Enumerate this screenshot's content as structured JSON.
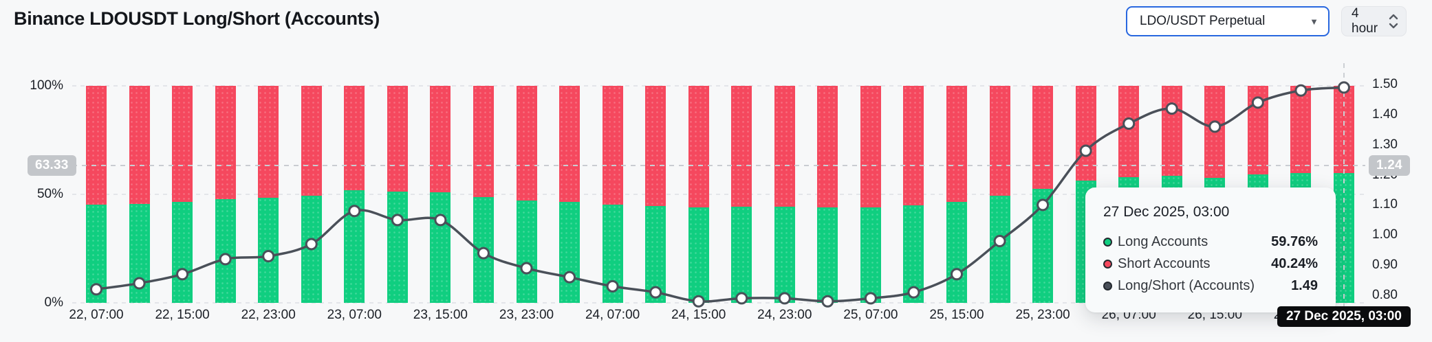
{
  "header": {
    "title": "Binance LDOUSDT Long/Short (Accounts)"
  },
  "controls": {
    "pair_select": {
      "value": "LDO/USDT Perpetual",
      "accent_color": "#2867df"
    },
    "interval_select": {
      "value": "4 hour"
    }
  },
  "chart_data": {
    "type": "bar",
    "subtype": "stacked-percent-bars-with-ratio-line",
    "categories": [
      "22, 07:00",
      "22, 11:00",
      "22, 15:00",
      "22, 19:00",
      "22, 23:00",
      "23, 03:00",
      "23, 07:00",
      "23, 11:00",
      "23, 15:00",
      "23, 19:00",
      "23, 23:00",
      "24, 03:00",
      "24, 07:00",
      "24, 11:00",
      "24, 15:00",
      "24, 19:00",
      "24, 23:00",
      "25, 03:00",
      "25, 07:00",
      "25, 11:00",
      "25, 15:00",
      "25, 19:00",
      "25, 23:00",
      "26, 03:00",
      "26, 07:00",
      "26, 11:00",
      "26, 15:00",
      "26, 19:00",
      "26, 23:00",
      "27, 03:00"
    ],
    "x_tick_every": 2,
    "series": [
      {
        "name": "Long Accounts",
        "type": "bar-bottom",
        "color": "#10ce80",
        "values": [
          45.1,
          45.6,
          46.5,
          47.8,
          48.3,
          49.3,
          52.0,
          51.2,
          51.1,
          48.6,
          47.1,
          46.5,
          45.4,
          44.7,
          43.9,
          44.2,
          44.3,
          44.0,
          44.1,
          44.8,
          46.5,
          49.5,
          52.5,
          56.2,
          57.8,
          58.7,
          57.7,
          59.1,
          59.7,
          59.76
        ]
      },
      {
        "name": "Short Accounts",
        "type": "bar-top",
        "color": "#f5485e",
        "values": [
          54.9,
          54.4,
          53.5,
          52.2,
          51.7,
          50.7,
          48.0,
          48.8,
          48.9,
          51.4,
          52.9,
          53.5,
          54.6,
          55.3,
          56.1,
          55.8,
          55.7,
          56.0,
          55.9,
          55.2,
          53.5,
          50.5,
          47.5,
          43.8,
          42.2,
          41.3,
          42.3,
          40.9,
          40.3,
          40.24
        ]
      },
      {
        "name": "Long/Short (Accounts)",
        "type": "line",
        "color": "#4a5059",
        "values": [
          0.82,
          0.84,
          0.87,
          0.92,
          0.93,
          0.97,
          1.08,
          1.05,
          1.05,
          0.94,
          0.89,
          0.86,
          0.83,
          0.81,
          0.78,
          0.79,
          0.79,
          0.78,
          0.79,
          0.81,
          0.87,
          0.98,
          1.1,
          1.28,
          1.37,
          1.42,
          1.36,
          1.44,
          1.48,
          1.49
        ]
      }
    ],
    "left_axis": {
      "ticks": [
        "100%",
        "50%",
        "0%"
      ],
      "range": [
        0,
        100
      ]
    },
    "right_axis": {
      "ticks": [
        "1.50",
        "1.40",
        "1.30",
        "1.20",
        "1.10",
        "1.00",
        "0.90",
        "0.80"
      ],
      "range": [
        0.8,
        1.5
      ]
    },
    "grid": "dashed horizontal at left-axis ticks",
    "crosshair": {
      "left_label": "63.33",
      "right_label": "1.24",
      "x_label": "27 Dec 2025, 03:00",
      "x_index": 29
    }
  },
  "tooltip": {
    "title": "27 Dec 2025, 03:00",
    "rows": [
      {
        "label": "Long Accounts",
        "value": "59.76%",
        "color": "#10ce80"
      },
      {
        "label": "Short Accounts",
        "value": "40.24%",
        "color": "#f5485e"
      },
      {
        "label": "Long/Short (Accounts)",
        "value": "1.49",
        "color": "#4a5059"
      }
    ]
  }
}
